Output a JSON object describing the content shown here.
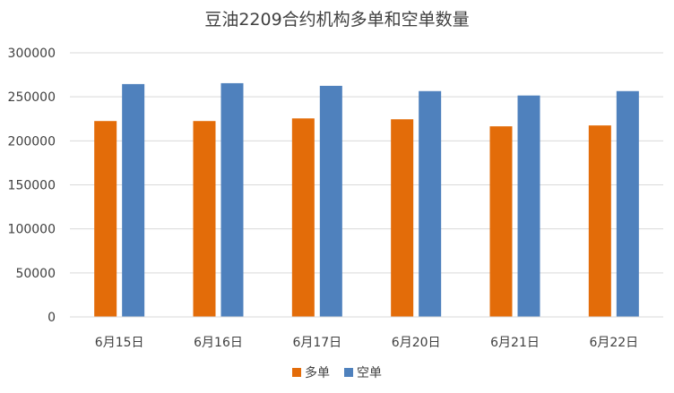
{
  "chart_data": {
    "type": "bar",
    "title": "豆油2209合约机构多单和空单数量",
    "xlabel": "",
    "ylabel": "",
    "categories": [
      "6月15日",
      "6月16日",
      "6月17日",
      "6月20日",
      "6月21日",
      "6月22日"
    ],
    "series": [
      {
        "name": "多单",
        "color": "#e36c09",
        "values": [
          222500,
          222500,
          225500,
          224500,
          216500,
          217500
        ]
      },
      {
        "name": "空单",
        "color": "#4f81bd",
        "values": [
          264500,
          265500,
          262500,
          256500,
          251500,
          256500
        ]
      }
    ],
    "ylim": [
      0,
      300000
    ],
    "yticks": [
      0,
      50000,
      100000,
      150000,
      200000,
      250000,
      300000
    ],
    "grid": true,
    "legend_position": "bottom"
  }
}
